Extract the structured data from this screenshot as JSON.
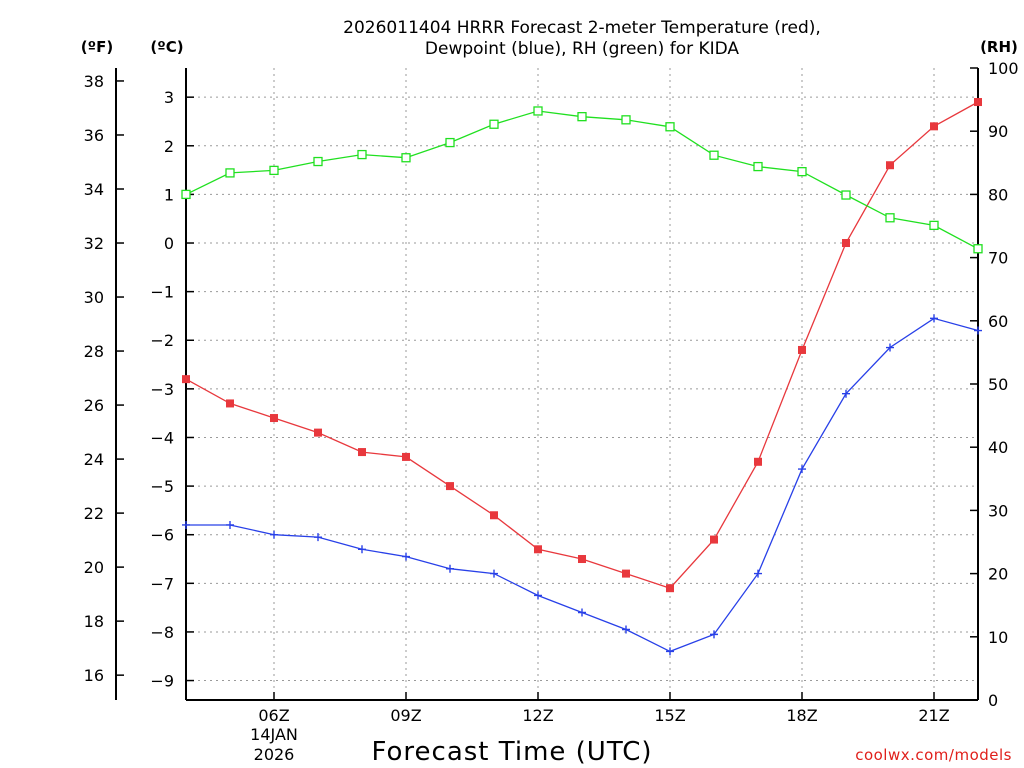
{
  "chart_data": {
    "type": "line",
    "title_line1": "2026011404 HRRR Forecast 2-meter Temperature (red),",
    "title_line2": "Dewpoint (blue), RH (green) for KIDA",
    "xlabel": "Forecast Time (UTC)",
    "date_label_day": "14JAN",
    "date_label_year": "2026",
    "credit": "coolwx.com/models",
    "units": {
      "fahrenheit": "(ºF)",
      "celsius": "(ºC)",
      "rh": "(RH)"
    },
    "x_hours": [
      4,
      5,
      6,
      7,
      8,
      9,
      10,
      11,
      12,
      13,
      14,
      15,
      16,
      17,
      18,
      19,
      20,
      21,
      22
    ],
    "x_range": [
      4,
      22
    ],
    "x_ticks": [
      {
        "hour": 6,
        "label": "06Z"
      },
      {
        "hour": 9,
        "label": "09Z"
      },
      {
        "hour": 12,
        "label": "12Z"
      },
      {
        "hour": 15,
        "label": "15Z"
      },
      {
        "hour": 18,
        "label": "18Z"
      },
      {
        "hour": 21,
        "label": "21Z"
      }
    ],
    "y_celsius": {
      "range": [
        -9.4,
        3.6
      ],
      "ticks": [
        "3",
        "2",
        "1",
        "0",
        "−1",
        "−2",
        "−3",
        "−4",
        "−5",
        "−6",
        "−7",
        "−8",
        "−9"
      ],
      "tick_values": [
        3,
        2,
        1,
        0,
        -1,
        -2,
        -3,
        -4,
        -5,
        -6,
        -7,
        -8,
        -9
      ]
    },
    "y_fahrenheit": {
      "ticks": [
        "38",
        "36",
        "34",
        "32",
        "30",
        "28",
        "26",
        "24",
        "22",
        "20",
        "18",
        "16"
      ],
      "tick_values": [
        38,
        36,
        34,
        32,
        30,
        28,
        26,
        24,
        22,
        20,
        18,
        16
      ]
    },
    "y_rh": {
      "range": [
        0,
        100
      ],
      "ticks": [
        "100",
        "90",
        "80",
        "70",
        "60",
        "50",
        "40",
        "30",
        "20",
        "10",
        "0"
      ],
      "tick_values": [
        100,
        90,
        80,
        70,
        60,
        50,
        40,
        30,
        20,
        10,
        0
      ]
    },
    "series": [
      {
        "name": "Temperature",
        "color": "#e8383d",
        "axis": "celsius",
        "marker": "filled-square",
        "values": [
          -2.8,
          -3.3,
          -3.6,
          -3.9,
          -4.3,
          -4.4,
          -5.0,
          -5.6,
          -6.3,
          -6.5,
          -6.8,
          -7.1,
          -6.1,
          -4.5,
          -2.2,
          0.0,
          1.6,
          2.4,
          2.9
        ]
      },
      {
        "name": "Dewpoint",
        "color": "#2840e8",
        "axis": "celsius",
        "marker": "plus",
        "values": [
          -5.8,
          -5.8,
          -6.0,
          -6.05,
          -6.3,
          -6.45,
          -6.7,
          -6.8,
          -7.25,
          -7.6,
          -7.95,
          -8.4,
          -8.05,
          -6.8,
          -4.65,
          -3.1,
          -2.15,
          -1.55,
          -1.8
        ]
      },
      {
        "name": "RH",
        "color": "#20e020",
        "axis": "rh",
        "marker": "open-square",
        "values": [
          80,
          83.4,
          83.8,
          85.2,
          86.3,
          85.8,
          88.2,
          91.1,
          93.2,
          92.3,
          91.8,
          90.7,
          86.2,
          84.4,
          83.6,
          79.9,
          76.3,
          75.1,
          71.4
        ]
      }
    ]
  }
}
